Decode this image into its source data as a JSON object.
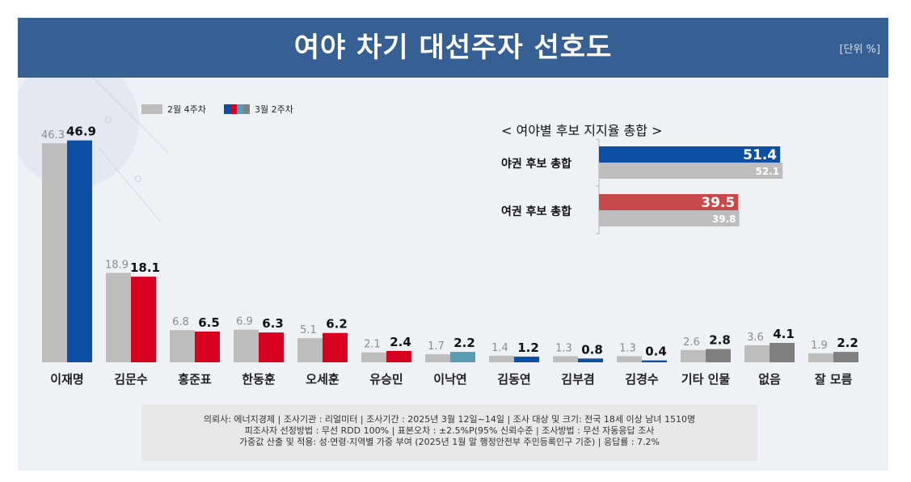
{
  "header": {
    "title": "여야 차기 대선주자 선호도",
    "unit": "[단위 %]"
  },
  "colors": {
    "header_bg": "#365f93",
    "prev": "#bdbdbd",
    "blue": "#0b4ea2",
    "red": "#d7001e",
    "teal": "#5a9bb5",
    "dark_gray": "#7f7f7f",
    "inset_red": "#c8494b"
  },
  "chart_data": [
    {
      "type": "bar",
      "title": "여야 차기 대선주자 선호도",
      "unit": "[단위 %]",
      "legend": [
        {
          "name": "2월 4주차"
        },
        {
          "name": "3월 2주차"
        }
      ],
      "legend_position": "top-left",
      "categories": [
        "이재명",
        "김문수",
        "홍준표",
        "한동훈",
        "오세훈",
        "유승민",
        "이낙연",
        "김동연",
        "김부겸",
        "김경수",
        "기타 인물",
        "없음",
        "잘 모름"
      ],
      "series": [
        {
          "name": "2월 4주차",
          "values": [
            46.3,
            18.9,
            6.8,
            6.9,
            5.1,
            2.1,
            1.7,
            1.4,
            1.3,
            1.3,
            2.6,
            3.6,
            1.9
          ]
        },
        {
          "name": "3월 2주차",
          "values": [
            46.9,
            18.1,
            6.5,
            6.3,
            6.2,
            2.4,
            2.2,
            1.2,
            0.8,
            0.4,
            2.8,
            4.1,
            2.2
          ],
          "bar_colors": [
            "blue",
            "red",
            "red",
            "red",
            "red",
            "red",
            "teal",
            "blue",
            "blue",
            "blue",
            "dark_gray",
            "dark_gray",
            "dark_gray"
          ]
        }
      ],
      "labels_prev": [
        "46.3",
        "18.9",
        "6.8",
        "6.9",
        "5.1",
        "2.1",
        "1.7",
        "1.4",
        "1.3",
        "1.3",
        "2.6",
        "3.6",
        "1.9"
      ],
      "labels_curr": [
        "46.9",
        "18.1",
        "6.5",
        "6.3",
        "6.2",
        "2.4",
        "2.2",
        "1.2",
        "0.8",
        "0.4",
        "2.8",
        "4.1",
        "2.2"
      ],
      "ylim": [
        0,
        50
      ],
      "grid": false
    },
    {
      "type": "bar",
      "orientation": "horizontal",
      "title": "< 여야별 후보 지지율 총합 >",
      "categories": [
        "야권 후보 총합",
        "여권 후보 총합"
      ],
      "series": [
        {
          "name": "3월 2주차",
          "values": [
            51.4,
            39.5
          ],
          "labels": [
            "51.4",
            "39.5"
          ]
        },
        {
          "name": "2월 4주차",
          "values": [
            52.1,
            39.8
          ],
          "labels": [
            "52.1",
            "39.8"
          ]
        }
      ],
      "xlim": [
        0,
        55
      ]
    }
  ],
  "footnote": {
    "line1": "의뢰사: 에너지경제 | 조사기관 : 리얼미터  |  조사기간 : 2025년 3월 12일~14일 | 조사 대상 및 크기: 전국 18세 이상 남녀 1510명",
    "line2": "피조사자 선정방법 : 무선 RDD 100% | 표본오차 : ±2.5%P(95% 신뢰수준 | 조사방법 : 무선 자동응답 조사",
    "line3": "가중값 산출 및 적용: 성·연령·지역별 가중 부여 (2025년 1월 말 행정안전부 주민등록인구 기준) | 응답률 : 7.2%"
  }
}
